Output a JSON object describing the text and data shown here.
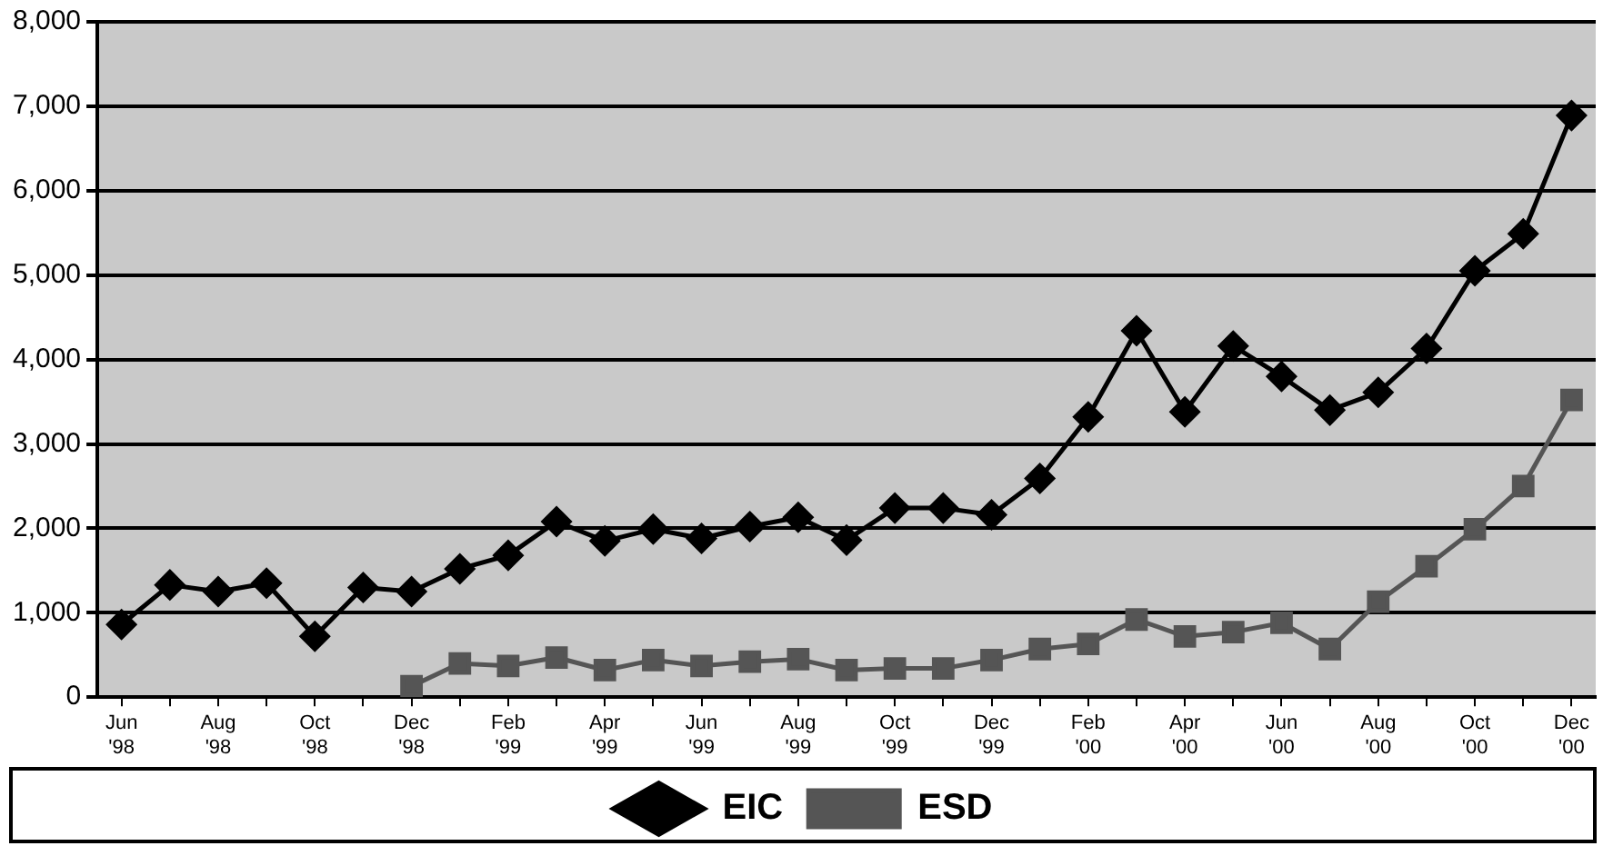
{
  "chart_data": {
    "type": "line",
    "categories": [
      "Jun '98",
      null,
      "Aug '98",
      null,
      "Oct '98",
      null,
      "Dec '98",
      null,
      "Feb '99",
      null,
      "Apr '99",
      null,
      "Jun '99",
      null,
      "Aug '99",
      null,
      "Oct '99",
      null,
      "Dec '99",
      null,
      "Feb '00",
      null,
      "Apr '00",
      null,
      "Jun '00",
      null,
      "Aug '00",
      null,
      "Oct '00",
      null,
      "Dec '00"
    ],
    "series": [
      {
        "name": "EIC",
        "color": "#000000",
        "marker": "diamond",
        "values": [
          860,
          1330,
          1250,
          1350,
          720,
          1300,
          1250,
          1520,
          1680,
          2080,
          1850,
          1990,
          1880,
          2020,
          2130,
          1860,
          2240,
          2240,
          2160,
          2590,
          3320,
          4340,
          3380,
          4160,
          3800,
          3400,
          3610,
          4130,
          5050,
          5490,
          6890
        ]
      },
      {
        "name": "ESD",
        "color": "#555555",
        "marker": "square",
        "values": [
          null,
          null,
          null,
          null,
          null,
          null,
          130,
          400,
          370,
          470,
          320,
          440,
          370,
          420,
          450,
          320,
          340,
          340,
          440,
          570,
          630,
          920,
          720,
          770,
          880,
          570,
          1130,
          1550,
          1990,
          2500,
          3520
        ]
      }
    ],
    "ylim": [
      0,
      8000
    ],
    "yticks": [
      {
        "value": 0,
        "label": "0"
      },
      {
        "value": 1000,
        "label": "1,000"
      },
      {
        "value": 2000,
        "label": "2,000"
      },
      {
        "value": 3000,
        "label": "3,000"
      },
      {
        "value": 4000,
        "label": "4,000"
      },
      {
        "value": 5000,
        "label": "5,000"
      },
      {
        "value": 6000,
        "label": "6,000"
      },
      {
        "value": 7000,
        "label": "7,000"
      },
      {
        "value": 8000,
        "label": "8,000"
      }
    ],
    "grid": "y",
    "legend": "bottom",
    "line_style": "solid"
  }
}
